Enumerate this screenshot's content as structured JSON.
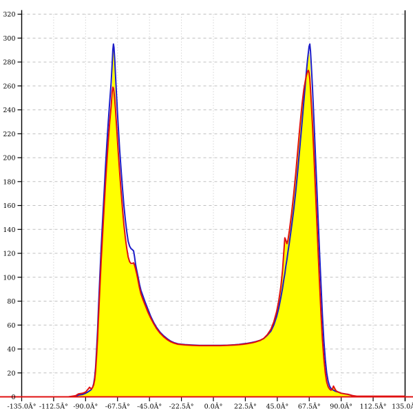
{
  "chart_data": {
    "type": "area",
    "title": "",
    "xlabel": "",
    "ylabel": "",
    "background": "#ffffff",
    "axis_color": "#000000",
    "grid": {
      "show": true,
      "color": "#bfbfbf",
      "h_dash": "4 4",
      "v_dash": "1 3"
    },
    "x_axis": {
      "range": [
        -135,
        135
      ],
      "tick_values": [
        -135,
        -112.5,
        -90,
        -67.5,
        -45,
        -22.5,
        0,
        22.5,
        45,
        67.5,
        90,
        112.5,
        135
      ],
      "tick_labels": [
        "-135.0Â°",
        "-112.5Â°",
        "-90.0Â°",
        "-67.5Â°",
        "-45.0Â°",
        "-22.5Â°",
        "0.0Â°",
        "22.5Â°",
        "45.0Â°",
        "67.5Â°",
        "90.0Â°",
        "112.5Â°",
        "135.0Â°"
      ]
    },
    "y_axis": {
      "range": [
        0,
        320
      ],
      "tick_step": 20,
      "tick_values": [
        0,
        20,
        40,
        60,
        80,
        100,
        120,
        140,
        160,
        180,
        200,
        220,
        240,
        260,
        280,
        300,
        320
      ],
      "tick_labels": [
        "0",
        "20",
        "40",
        "60",
        "80",
        "100",
        "120",
        "140",
        "160",
        "180",
        "200",
        "220",
        "240",
        "260",
        "280",
        "300",
        "320"
      ]
    },
    "x": [
      -135,
      -102,
      -97,
      -95,
      -92,
      -90,
      -88.5,
      -87.2,
      -86,
      -85,
      -84.3,
      -83.6,
      -83,
      -82.3,
      -81.6,
      -81,
      -80,
      -79,
      -78,
      -77,
      -76,
      -75,
      -74,
      -73,
      -72,
      -71.3,
      -70.8,
      -70.4,
      -70,
      -69.5,
      -69,
      -68.2,
      -67.2,
      -66,
      -65,
      -64,
      -63,
      -62,
      -61,
      -60,
      -59,
      -58,
      -57,
      -56.2,
      -55.5,
      -54.8,
      -54,
      -53,
      -52,
      -51,
      -49.5,
      -48,
      -46,
      -44,
      -42,
      -40,
      -37.5,
      -35,
      -32.5,
      -30,
      -27.5,
      -25,
      -22.5,
      -20,
      -15,
      -10,
      -5,
      0,
      5,
      10,
      15,
      18,
      21,
      24,
      27,
      30,
      33,
      35.5,
      38,
      40.5,
      42.5,
      44.5,
      46,
      47.5,
      48.7,
      49.6,
      50.3,
      51,
      51.8,
      52.5,
      53.5,
      55,
      56.5,
      58,
      59.5,
      61,
      62.5,
      63.7,
      64.7,
      65.6,
      66.3,
      66.9,
      67.4,
      67.9,
      68.4,
      69,
      69.8,
      70.8,
      71.8,
      72.8,
      73.8,
      74.8,
      75.8,
      76.8,
      77.8,
      78.8,
      79.8,
      80.8,
      81.8,
      82.8,
      83.8,
      84.6,
      85.4,
      86.4,
      88,
      90,
      92.5,
      95,
      98,
      101,
      135
    ],
    "series": [
      {
        "name": "yellow-area",
        "type": "area",
        "fill": "#ffff00",
        "values": [
          0,
          0,
          0.5,
          1.5,
          2,
          3,
          4.5,
          6,
          5,
          6.5,
          9,
          13,
          19,
          31,
          46,
          62,
          88,
          112,
          134,
          156,
          176,
          195,
          212,
          228,
          243,
          262,
          283,
          291,
          287,
          272,
          255,
          235,
          210,
          188,
          171,
          156,
          143,
          132,
          123,
          116,
          112,
          110.5,
          110.5,
          111,
          109,
          106,
          102,
          96,
          90,
          85,
          80,
          75.5,
          69.5,
          64.5,
          60,
          56,
          52.5,
          49.5,
          47.2,
          45.5,
          44.3,
          43.5,
          43.2,
          43,
          42.7,
          42.4,
          42.4,
          42.4,
          42.4,
          42.6,
          42.9,
          43.2,
          43.6,
          44.1,
          44.7,
          45.6,
          46.8,
          48.4,
          51.5,
          56,
          62,
          70.5,
          79.5,
          91.5,
          105,
          120,
          132,
          130,
          127,
          130,
          138,
          152,
          168,
          186,
          206,
          226,
          244,
          256,
          263,
          270,
          277,
          283,
          288,
          284,
          272,
          255,
          240,
          218,
          190,
          160,
          130,
          100,
          72,
          50,
          33,
          21,
          13,
          9,
          6.5,
          5.5,
          6,
          8,
          6,
          4.5,
          3.5,
          2.5,
          2,
          1.5,
          0.5,
          0,
          0
        ]
      },
      {
        "name": "blue-line",
        "type": "line",
        "color": "#1c1cc8",
        "width": 2,
        "values": [
          0,
          0,
          0.5,
          1.5,
          2,
          3,
          4,
          5,
          6,
          8,
          11,
          16,
          24,
          38,
          55,
          72,
          100,
          125,
          148,
          170,
          192,
          212,
          230,
          247,
          263,
          278,
          290,
          295,
          292,
          283,
          270,
          252,
          230,
          207,
          190,
          174,
          160,
          148,
          138,
          130,
          126,
          124,
          123,
          122,
          117,
          111,
          106,
          100,
          94,
          89,
          84,
          79,
          73,
          67,
          62,
          58,
          54,
          51,
          48.5,
          46.5,
          45.2,
          44.3,
          44,
          43.7,
          43.3,
          43,
          43,
          43,
          43,
          43.2,
          43.5,
          43.8,
          44.3,
          44.8,
          45.4,
          46.2,
          47.3,
          48.8,
          51.5,
          55,
          60,
          67,
          74,
          83,
          91,
          98,
          103,
          109,
          115,
          121,
          129,
          142,
          156,
          172,
          190,
          210,
          230,
          247,
          261,
          273,
          282,
          288,
          293,
          295,
          289,
          277,
          258,
          231,
          204,
          176,
          148,
          120,
          93,
          68,
          47,
          31,
          20,
          13,
          9,
          7,
          6,
          5.5,
          5,
          4.5,
          4,
          3,
          2.5,
          2,
          1,
          0,
          0
        ]
      },
      {
        "name": "red-line",
        "type": "line",
        "color": "#e01010",
        "width": 2,
        "extend_full_width": true,
        "values": [
          0,
          0,
          1,
          2.5,
          3,
          4,
          6,
          8,
          6.5,
          8,
          10,
          14,
          21,
          33,
          48,
          64,
          90,
          114,
          136,
          158,
          178,
          197,
          214,
          230,
          243,
          255,
          259,
          258,
          255,
          249,
          241,
          227,
          208,
          188,
          172,
          157,
          144,
          133,
          124,
          117,
          113,
          111.5,
          111.5,
          112,
          110,
          107,
          103,
          97,
          91,
          86,
          81,
          76.5,
          70.5,
          65.5,
          61,
          57,
          53.2,
          50.2,
          47.8,
          46,
          44.8,
          44,
          43.7,
          43.4,
          43,
          42.8,
          42.8,
          42.8,
          42.8,
          43,
          43.3,
          43.6,
          44,
          44.5,
          45.1,
          46,
          47.2,
          48.9,
          52,
          56.5,
          62.5,
          71,
          80,
          92,
          106,
          121,
          133,
          131,
          128,
          131,
          139,
          153,
          169,
          187,
          207,
          227,
          245,
          257,
          264,
          269,
          272,
          273,
          271,
          266,
          257,
          245,
          227,
          202,
          175,
          148,
          121,
          94,
          69,
          48,
          32,
          20,
          12.5,
          8.5,
          6.5,
          5.5,
          6.5,
          9,
          7,
          5,
          4,
          3,
          2.5,
          2,
          1,
          0.5,
          0.5
        ]
      }
    ]
  }
}
